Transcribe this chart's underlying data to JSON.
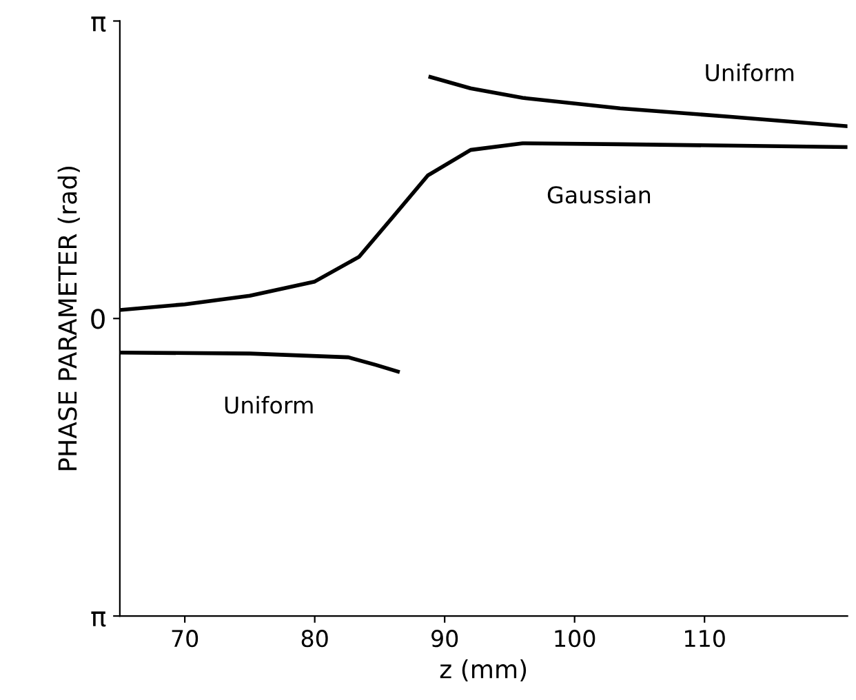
{
  "chart_data": {
    "type": "line",
    "xlabel": "z (mm)",
    "ylabel": "PHASE PARAMETER (rad)",
    "xlim": [
      65,
      121
    ],
    "xticks": [
      70,
      80,
      90,
      100,
      110
    ],
    "ylim": [
      -3.1416,
      3.1416
    ],
    "yticks": [
      {
        "value": 3.1416,
        "label": "π"
      },
      0,
      {
        "value": -3.1416,
        "label": "π"
      }
    ],
    "grid": false,
    "marker": "none",
    "line_style": "solid",
    "series": [
      {
        "name": "Gaussian",
        "color": "#000000",
        "x": [
          65,
          70,
          75,
          80,
          83.4,
          86,
          88.7,
          92,
          96,
          103.5,
          121
        ],
        "values": [
          0.09,
          0.15,
          0.24,
          0.39,
          0.65,
          1.07,
          1.51,
          1.78,
          1.85,
          1.84,
          1.81
        ]
      },
      {
        "name": "Uniform",
        "color": "#000000",
        "x": [
          88.9,
          92,
          96,
          103.5,
          112,
          121
        ],
        "values": [
          2.55,
          2.43,
          2.33,
          2.22,
          2.13,
          2.03
        ]
      },
      {
        "name": "Uniform",
        "color": "#000000",
        "x": [
          65,
          75,
          82.6,
          84.7,
          86.4
        ],
        "values": [
          -0.36,
          -0.37,
          -0.41,
          -0.49,
          -0.56
        ]
      }
    ]
  }
}
